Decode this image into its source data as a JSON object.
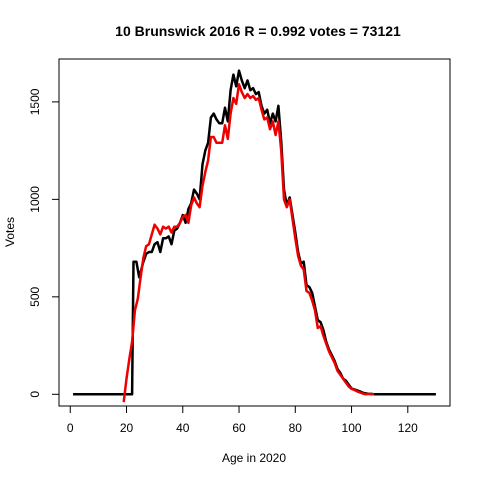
{
  "chart_data": {
    "type": "line",
    "title": "10 Brunswick 2016 R = 0.992 votes = 73121",
    "xlabel": "Age in 2020",
    "ylabel": "Votes",
    "xlim": [
      -4,
      135
    ],
    "ylim": [
      -60,
      1720
    ],
    "x_ticks": [
      0,
      20,
      40,
      60,
      80,
      100,
      120
    ],
    "y_ticks": [
      0,
      500,
      1000,
      1500
    ],
    "x_tick_labels": [
      "0",
      "20",
      "40",
      "60",
      "80",
      "100",
      "120"
    ],
    "y_tick_labels": [
      "0",
      "500",
      "1000",
      "1500"
    ],
    "grid": false,
    "legend": "none",
    "series": [
      {
        "color": "#000000",
        "points": [
          [
            1,
            0
          ],
          [
            10,
            0
          ],
          [
            19,
            0
          ],
          [
            22,
            0
          ],
          [
            22.5,
            680
          ],
          [
            23.5,
            680
          ],
          [
            24.5,
            600
          ],
          [
            26,
            680
          ],
          [
            27,
            720
          ],
          [
            28,
            730
          ],
          [
            29,
            730
          ],
          [
            30,
            770
          ],
          [
            31,
            780
          ],
          [
            32,
            730
          ],
          [
            33,
            800
          ],
          [
            34,
            800
          ],
          [
            35,
            810
          ],
          [
            36,
            770
          ],
          [
            37,
            840
          ],
          [
            38,
            850
          ],
          [
            39,
            880
          ],
          [
            40,
            920
          ],
          [
            41,
            880
          ],
          [
            42,
            950
          ],
          [
            43,
            980
          ],
          [
            44,
            1050
          ],
          [
            45,
            1030
          ],
          [
            46,
            1000
          ],
          [
            47,
            1180
          ],
          [
            48,
            1250
          ],
          [
            49,
            1290
          ],
          [
            50,
            1420
          ],
          [
            51,
            1440
          ],
          [
            52,
            1410
          ],
          [
            53,
            1390
          ],
          [
            54,
            1390
          ],
          [
            55,
            1470
          ],
          [
            56,
            1400
          ],
          [
            57,
            1560
          ],
          [
            58,
            1640
          ],
          [
            59,
            1580
          ],
          [
            60,
            1660
          ],
          [
            61,
            1610
          ],
          [
            62,
            1570
          ],
          [
            63,
            1610
          ],
          [
            64,
            1560
          ],
          [
            65,
            1570
          ],
          [
            66,
            1540
          ],
          [
            67,
            1550
          ],
          [
            68,
            1480
          ],
          [
            69,
            1440
          ],
          [
            70,
            1460
          ],
          [
            71,
            1390
          ],
          [
            72,
            1440
          ],
          [
            73,
            1400
          ],
          [
            74,
            1480
          ],
          [
            75,
            1300
          ],
          [
            76,
            1050
          ],
          [
            77,
            970
          ],
          [
            78,
            1010
          ],
          [
            79,
            920
          ],
          [
            80,
            830
          ],
          [
            81,
            730
          ],
          [
            82,
            670
          ],
          [
            83,
            680
          ],
          [
            84,
            560
          ],
          [
            85,
            550
          ],
          [
            86,
            520
          ],
          [
            87,
            450
          ],
          [
            88,
            380
          ],
          [
            89,
            370
          ],
          [
            90,
            330
          ],
          [
            91,
            270
          ],
          [
            92,
            230
          ],
          [
            93,
            200
          ],
          [
            94,
            170
          ],
          [
            95,
            130
          ],
          [
            96,
            110
          ],
          [
            97,
            80
          ],
          [
            98,
            70
          ],
          [
            99,
            50
          ],
          [
            100,
            30
          ],
          [
            101,
            25
          ],
          [
            102,
            20
          ],
          [
            103,
            15
          ],
          [
            104,
            8
          ],
          [
            105,
            5
          ],
          [
            106,
            3
          ],
          [
            107,
            2
          ],
          [
            108,
            0
          ],
          [
            110,
            0
          ],
          [
            115,
            0
          ],
          [
            120,
            0
          ],
          [
            125,
            0
          ],
          [
            130,
            0
          ]
        ]
      },
      {
        "color": "#ee0000",
        "points": [
          [
            19,
            -40
          ],
          [
            20,
            80
          ],
          [
            21,
            180
          ],
          [
            22,
            270
          ],
          [
            23,
            430
          ],
          [
            24,
            490
          ],
          [
            25,
            600
          ],
          [
            26,
            700
          ],
          [
            27,
            760
          ],
          [
            28,
            770
          ],
          [
            29,
            820
          ],
          [
            30,
            870
          ],
          [
            31,
            850
          ],
          [
            32,
            820
          ],
          [
            33,
            860
          ],
          [
            34,
            850
          ],
          [
            35,
            860
          ],
          [
            36,
            830
          ],
          [
            37,
            860
          ],
          [
            38,
            860
          ],
          [
            39,
            880
          ],
          [
            40,
            910
          ],
          [
            41,
            920
          ],
          [
            42,
            880
          ],
          [
            43,
            970
          ],
          [
            44,
            1010
          ],
          [
            45,
            980
          ],
          [
            46,
            960
          ],
          [
            47,
            1070
          ],
          [
            48,
            1140
          ],
          [
            49,
            1200
          ],
          [
            50,
            1320
          ],
          [
            51,
            1320
          ],
          [
            52,
            1290
          ],
          [
            53,
            1290
          ],
          [
            54,
            1290
          ],
          [
            55,
            1380
          ],
          [
            56,
            1310
          ],
          [
            57,
            1440
          ],
          [
            58,
            1520
          ],
          [
            59,
            1490
          ],
          [
            60,
            1590
          ],
          [
            61,
            1550
          ],
          [
            62,
            1520
          ],
          [
            63,
            1540
          ],
          [
            64,
            1520
          ],
          [
            65,
            1530
          ],
          [
            66,
            1510
          ],
          [
            67,
            1520
          ],
          [
            68,
            1460
          ],
          [
            69,
            1410
          ],
          [
            70,
            1420
          ],
          [
            71,
            1360
          ],
          [
            72,
            1400
          ],
          [
            73,
            1330
          ],
          [
            74,
            1400
          ],
          [
            75,
            1250
          ],
          [
            76,
            1000
          ],
          [
            77,
            960
          ],
          [
            78,
            1000
          ],
          [
            79,
            900
          ],
          [
            80,
            800
          ],
          [
            81,
            710
          ],
          [
            82,
            660
          ],
          [
            83,
            640
          ],
          [
            84,
            530
          ],
          [
            85,
            520
          ],
          [
            86,
            480
          ],
          [
            87,
            430
          ],
          [
            88,
            340
          ],
          [
            89,
            350
          ],
          [
            90,
            300
          ],
          [
            91,
            260
          ],
          [
            92,
            220
          ],
          [
            93,
            190
          ],
          [
            94,
            160
          ],
          [
            95,
            120
          ],
          [
            96,
            100
          ],
          [
            97,
            80
          ],
          [
            98,
            60
          ],
          [
            99,
            40
          ],
          [
            100,
            28
          ],
          [
            101,
            22
          ],
          [
            102,
            15
          ],
          [
            103,
            10
          ],
          [
            104,
            4
          ],
          [
            105,
            0
          ],
          [
            106,
            2
          ],
          [
            107,
            0
          ],
          [
            108,
            0
          ]
        ]
      }
    ]
  }
}
